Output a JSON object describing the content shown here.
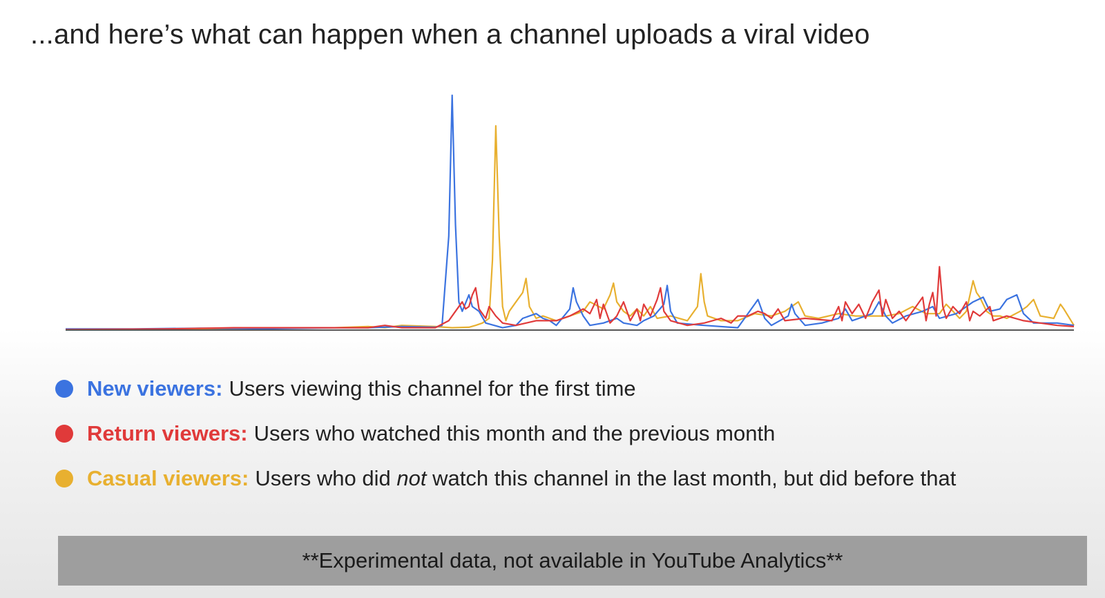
{
  "title": "...and here’s what can happen when a channel uploads a viral video",
  "colors": {
    "new": "#3b73e0",
    "return": "#e03a3a",
    "casual": "#e8b030",
    "axis": "#555555"
  },
  "legend": [
    {
      "key": "new",
      "name": "New viewers:",
      "desc": "Users viewing this channel for the first time"
    },
    {
      "key": "return",
      "name": "Return viewers:",
      "desc": "Users who watched this month and the previous month"
    },
    {
      "key": "casual",
      "name": "Casual viewers:",
      "desc_before": "Users who did ",
      "desc_emph": "not",
      "desc_after": " watch this channel in the last month, but did before that"
    }
  ],
  "footer": "**Experimental data, not available in YouTube Analytics**",
  "chart_data": {
    "type": "line",
    "title": "",
    "xlabel": "",
    "ylabel": "",
    "grid": false,
    "xlim": [
      0,
      300
    ],
    "ylim": [
      0,
      100
    ],
    "series": [
      {
        "name": "New viewers",
        "key": "new",
        "points": [
          [
            0,
            0.5
          ],
          [
            20,
            0.5
          ],
          [
            40,
            0.8
          ],
          [
            60,
            0.6
          ],
          [
            80,
            1
          ],
          [
            90,
            1
          ],
          [
            100,
            1.5
          ],
          [
            110,
            1.2
          ],
          [
            112,
            2
          ],
          [
            114,
            40
          ],
          [
            115,
            100
          ],
          [
            116,
            45
          ],
          [
            117,
            12
          ],
          [
            118,
            8
          ],
          [
            120,
            15
          ],
          [
            121,
            10
          ],
          [
            123,
            8
          ],
          [
            125,
            3
          ],
          [
            130,
            1
          ],
          [
            134,
            2
          ],
          [
            136,
            5
          ],
          [
            138,
            6
          ],
          [
            140,
            7
          ],
          [
            142,
            5
          ],
          [
            144,
            4
          ],
          [
            146,
            2
          ],
          [
            150,
            9
          ],
          [
            151,
            18
          ],
          [
            152,
            12
          ],
          [
            154,
            6
          ],
          [
            156,
            2
          ],
          [
            160,
            3
          ],
          [
            164,
            5
          ],
          [
            166,
            3
          ],
          [
            170,
            2
          ],
          [
            172,
            4
          ],
          [
            175,
            6
          ],
          [
            178,
            11
          ],
          [
            179,
            19
          ],
          [
            180,
            8
          ],
          [
            182,
            3
          ],
          [
            190,
            2
          ],
          [
            200,
            1
          ],
          [
            205,
            11
          ],
          [
            206,
            13
          ],
          [
            208,
            5
          ],
          [
            210,
            2
          ],
          [
            215,
            6
          ],
          [
            216,
            11
          ],
          [
            217,
            7
          ],
          [
            220,
            2
          ],
          [
            225,
            3
          ],
          [
            230,
            5
          ],
          [
            232,
            9
          ],
          [
            234,
            4
          ],
          [
            240,
            7
          ],
          [
            242,
            12
          ],
          [
            244,
            6
          ],
          [
            246,
            3
          ],
          [
            250,
            6
          ],
          [
            255,
            8
          ],
          [
            258,
            10
          ],
          [
            260,
            5
          ],
          [
            265,
            7
          ],
          [
            270,
            12
          ],
          [
            273,
            14
          ],
          [
            275,
            8
          ],
          [
            278,
            9
          ],
          [
            280,
            13
          ],
          [
            283,
            15
          ],
          [
            285,
            7
          ],
          [
            288,
            3
          ],
          [
            295,
            3
          ],
          [
            300,
            2
          ]
        ]
      },
      {
        "name": "Return viewers",
        "key": "return",
        "points": [
          [
            0,
            0.2
          ],
          [
            30,
            0.5
          ],
          [
            50,
            1
          ],
          [
            70,
            1
          ],
          [
            90,
            1
          ],
          [
            95,
            2
          ],
          [
            100,
            1
          ],
          [
            110,
            1
          ],
          [
            114,
            4
          ],
          [
            116,
            8
          ],
          [
            118,
            12
          ],
          [
            119,
            9
          ],
          [
            120,
            10
          ],
          [
            121,
            15
          ],
          [
            122,
            18
          ],
          [
            123,
            9
          ],
          [
            125,
            5
          ],
          [
            126,
            10
          ],
          [
            128,
            6
          ],
          [
            130,
            3
          ],
          [
            134,
            2
          ],
          [
            140,
            4
          ],
          [
            146,
            4
          ],
          [
            150,
            6
          ],
          [
            154,
            9
          ],
          [
            156,
            7
          ],
          [
            158,
            13
          ],
          [
            159,
            5
          ],
          [
            160,
            11
          ],
          [
            162,
            3
          ],
          [
            164,
            6
          ],
          [
            166,
            12
          ],
          [
            168,
            4
          ],
          [
            170,
            9
          ],
          [
            171,
            4
          ],
          [
            172,
            11
          ],
          [
            174,
            6
          ],
          [
            176,
            13
          ],
          [
            177,
            18
          ],
          [
            178,
            8
          ],
          [
            180,
            4
          ],
          [
            185,
            2
          ],
          [
            190,
            3
          ],
          [
            195,
            5
          ],
          [
            198,
            3
          ],
          [
            200,
            6
          ],
          [
            203,
            6
          ],
          [
            206,
            8
          ],
          [
            208,
            7
          ],
          [
            210,
            5
          ],
          [
            212,
            9
          ],
          [
            214,
            4
          ],
          [
            220,
            5
          ],
          [
            228,
            4
          ],
          [
            230,
            10
          ],
          [
            231,
            4
          ],
          [
            232,
            12
          ],
          [
            234,
            7
          ],
          [
            236,
            11
          ],
          [
            238,
            5
          ],
          [
            240,
            12
          ],
          [
            242,
            17
          ],
          [
            243,
            6
          ],
          [
            244,
            13
          ],
          [
            246,
            5
          ],
          [
            248,
            8
          ],
          [
            250,
            4
          ],
          [
            255,
            14
          ],
          [
            256,
            4
          ],
          [
            257,
            11
          ],
          [
            258,
            16
          ],
          [
            259,
            6
          ],
          [
            260,
            27
          ],
          [
            261,
            10
          ],
          [
            262,
            5
          ],
          [
            264,
            10
          ],
          [
            266,
            7
          ],
          [
            268,
            12
          ],
          [
            269,
            4
          ],
          [
            270,
            8
          ],
          [
            272,
            6
          ],
          [
            275,
            10
          ],
          [
            276,
            4
          ],
          [
            280,
            6
          ],
          [
            285,
            4
          ],
          [
            290,
            3
          ],
          [
            295,
            2
          ],
          [
            300,
            1.5
          ]
        ]
      },
      {
        "name": "Casual viewers",
        "key": "casual",
        "points": [
          [
            0,
            0.3
          ],
          [
            20,
            0.3
          ],
          [
            40,
            0.5
          ],
          [
            60,
            0.8
          ],
          [
            80,
            1
          ],
          [
            90,
            1.5
          ],
          [
            95,
            1
          ],
          [
            100,
            2
          ],
          [
            110,
            1.5
          ],
          [
            115,
            1
          ],
          [
            120,
            1.2
          ],
          [
            122,
            2
          ],
          [
            124,
            3
          ],
          [
            126,
            5
          ],
          [
            127,
            30
          ],
          [
            128,
            87
          ],
          [
            129,
            40
          ],
          [
            130,
            10
          ],
          [
            131,
            4
          ],
          [
            132,
            8
          ],
          [
            134,
            12
          ],
          [
            136,
            16
          ],
          [
            137,
            22
          ],
          [
            138,
            10
          ],
          [
            140,
            5
          ],
          [
            142,
            6
          ],
          [
            146,
            4
          ],
          [
            150,
            6
          ],
          [
            154,
            8
          ],
          [
            156,
            12
          ],
          [
            160,
            9
          ],
          [
            162,
            15
          ],
          [
            163,
            20
          ],
          [
            164,
            12
          ],
          [
            166,
            8
          ],
          [
            168,
            6
          ],
          [
            170,
            9
          ],
          [
            172,
            6
          ],
          [
            174,
            10
          ],
          [
            176,
            5
          ],
          [
            180,
            6
          ],
          [
            185,
            4
          ],
          [
            188,
            10
          ],
          [
            189,
            24
          ],
          [
            190,
            12
          ],
          [
            191,
            6
          ],
          [
            195,
            4
          ],
          [
            200,
            4
          ],
          [
            205,
            7
          ],
          [
            210,
            6
          ],
          [
            214,
            8
          ],
          [
            218,
            12
          ],
          [
            219,
            9
          ],
          [
            220,
            6
          ],
          [
            224,
            5
          ],
          [
            230,
            7
          ],
          [
            235,
            6
          ],
          [
            240,
            6
          ],
          [
            244,
            6
          ],
          [
            248,
            7
          ],
          [
            252,
            10
          ],
          [
            256,
            7
          ],
          [
            260,
            7
          ],
          [
            262,
            11
          ],
          [
            264,
            8
          ],
          [
            266,
            5
          ],
          [
            268,
            8
          ],
          [
            270,
            21
          ],
          [
            271,
            16
          ],
          [
            272,
            14
          ],
          [
            274,
            8
          ],
          [
            276,
            6
          ],
          [
            278,
            6
          ],
          [
            280,
            5
          ],
          [
            284,
            8
          ],
          [
            286,
            10
          ],
          [
            288,
            13
          ],
          [
            290,
            6
          ],
          [
            294,
            5
          ],
          [
            296,
            11
          ],
          [
            297,
            9
          ],
          [
            300,
            2
          ]
        ]
      }
    ]
  }
}
